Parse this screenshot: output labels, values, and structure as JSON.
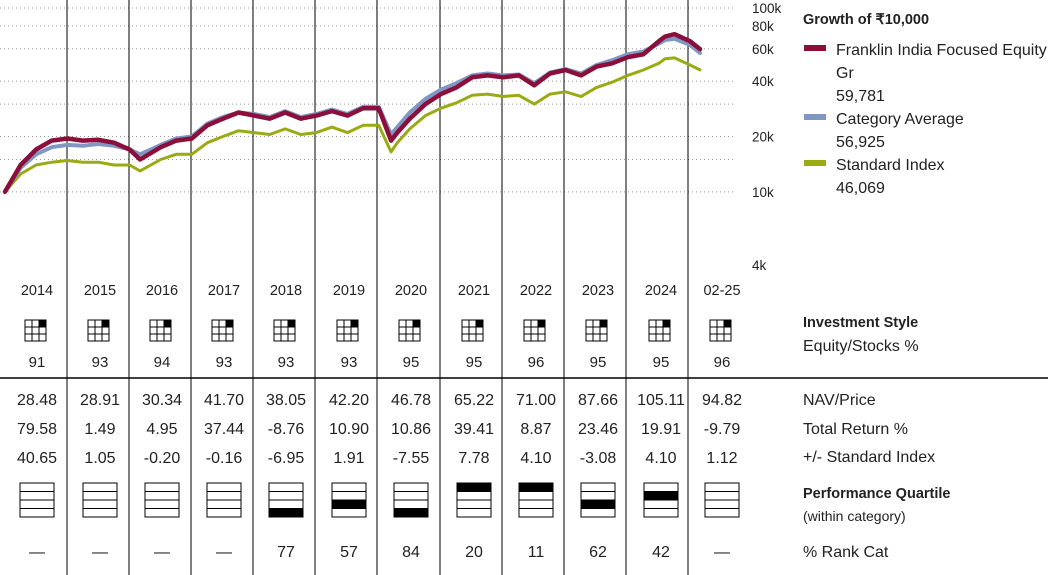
{
  "colors": {
    "fund": "#8b0f3a",
    "category": "#7f97c2",
    "index": "#9aaa12",
    "grid": "#000000",
    "dotted": "#9a9a9a"
  },
  "header": {
    "growth_title": "Growth of ₹10,000"
  },
  "legend": [
    {
      "name_line1": "Franklin India Focused Equity",
      "name_line2": "Gr",
      "value": "59,781",
      "color_key": "fund"
    },
    {
      "name_line1": "Category Average",
      "name_line2": "",
      "value": "56,925",
      "color_key": "category"
    },
    {
      "name_line1": "Standard Index",
      "name_line2": "",
      "value": "46,069",
      "color_key": "index"
    }
  ],
  "years": [
    "2014",
    "2015",
    "2016",
    "2017",
    "2018",
    "2019",
    "2020",
    "2021",
    "2022",
    "2023",
    "2024",
    "02-25"
  ],
  "style": {
    "label": "Investment Style",
    "sublabel": "Equity/Stocks %",
    "box_cell": [
      2,
      2,
      2,
      2,
      2,
      2,
      2,
      2,
      2,
      2,
      2,
      2
    ],
    "equity_pct": [
      "91",
      "93",
      "94",
      "93",
      "93",
      "93",
      "95",
      "95",
      "96",
      "95",
      "95",
      "96"
    ]
  },
  "table": {
    "rows": [
      {
        "label": "NAV/Price",
        "values": [
          "28.48",
          "28.91",
          "30.34",
          "41.70",
          "38.05",
          "42.20",
          "46.78",
          "65.22",
          "71.00",
          "87.66",
          "105.11",
          "94.82"
        ]
      },
      {
        "label": "Total Return %",
        "values": [
          "79.58",
          "1.49",
          "4.95",
          "37.44",
          "-8.76",
          "10.90",
          "10.86",
          "39.41",
          "8.87",
          "23.46",
          "19.91",
          "-9.79"
        ]
      },
      {
        "label": "+/- Standard Index",
        "values": [
          "40.65",
          "1.05",
          "-0.20",
          "-0.16",
          "-6.95",
          "1.91",
          "-7.55",
          "7.78",
          "4.10",
          "-3.08",
          "4.10",
          "1.12"
        ]
      }
    ]
  },
  "quartile": {
    "label": "Performance Quartile",
    "sublabel": "(within category)",
    "values": [
      null,
      null,
      null,
      null,
      4,
      3,
      4,
      1,
      1,
      3,
      2,
      null
    ]
  },
  "rank": {
    "label": "% Rank Cat",
    "values": [
      "—",
      "—",
      "—",
      "—",
      "77",
      "57",
      "84",
      "20",
      "11",
      "62",
      "42",
      "—"
    ]
  },
  "chart_data": {
    "type": "line",
    "title": "Growth of ₹10,000",
    "yscale": "log",
    "ylim": [
      4000,
      100000
    ],
    "yticks": [
      "4k",
      "10k",
      "20k",
      "40k",
      "60k",
      "80k",
      "100k"
    ],
    "ytick_values": [
      4000,
      10000,
      20000,
      40000,
      60000,
      80000,
      100000
    ],
    "x_unit": "year",
    "xlim": [
      2014.0,
      2025.16
    ],
    "grid": true,
    "series": [
      {
        "name": "Franklin India Focused Equity Gr",
        "color_key": "fund",
        "final": 59781,
        "x": [
          2014.0,
          2014.25,
          2014.5,
          2014.75,
          2015.0,
          2015.25,
          2015.5,
          2015.75,
          2016.0,
          2016.17,
          2016.5,
          2016.75,
          2017.0,
          2017.25,
          2017.5,
          2017.75,
          2018.0,
          2018.25,
          2018.5,
          2018.75,
          2019.0,
          2019.25,
          2019.5,
          2019.75,
          2020.0,
          2020.2,
          2020.3,
          2020.5,
          2020.75,
          2021.0,
          2021.25,
          2021.5,
          2021.75,
          2022.0,
          2022.25,
          2022.5,
          2022.75,
          2023.0,
          2023.25,
          2023.5,
          2023.75,
          2024.0,
          2024.25,
          2024.5,
          2024.6,
          2024.75,
          2025.0,
          2025.16
        ],
        "y": [
          10000,
          14000,
          17000,
          19000,
          19500,
          19000,
          19200,
          18500,
          17000,
          15000,
          17500,
          19000,
          19500,
          23000,
          25000,
          27000,
          26000,
          25000,
          27000,
          25000,
          26000,
          27500,
          26000,
          28500,
          28500,
          19000,
          21000,
          25000,
          30000,
          34000,
          37000,
          42000,
          43000,
          42000,
          43000,
          38000,
          44000,
          46000,
          43000,
          48000,
          50000,
          54000,
          56000,
          66000,
          70000,
          72000,
          66000,
          59781
        ]
      },
      {
        "name": "Category Average",
        "color_key": "category",
        "final": 56925,
        "x": [
          2014.0,
          2014.25,
          2014.5,
          2014.75,
          2015.0,
          2015.25,
          2015.5,
          2015.75,
          2016.0,
          2016.17,
          2016.5,
          2016.75,
          2017.0,
          2017.25,
          2017.5,
          2017.75,
          2018.0,
          2018.25,
          2018.5,
          2018.75,
          2019.0,
          2019.25,
          2019.5,
          2019.75,
          2020.0,
          2020.2,
          2020.3,
          2020.5,
          2020.75,
          2021.0,
          2021.25,
          2021.5,
          2021.75,
          2022.0,
          2022.25,
          2022.5,
          2022.75,
          2023.0,
          2023.25,
          2023.5,
          2023.75,
          2024.0,
          2024.25,
          2024.5,
          2024.6,
          2024.75,
          2025.0,
          2025.16
        ],
        "y": [
          10000,
          13500,
          16000,
          17500,
          18000,
          17800,
          18200,
          17800,
          17000,
          16000,
          18000,
          19500,
          20000,
          23500,
          25500,
          27000,
          26500,
          25500,
          27500,
          25500,
          26500,
          28000,
          26500,
          29000,
          29000,
          20500,
          22500,
          27000,
          32000,
          36000,
          39000,
          43000,
          44000,
          43000,
          43500,
          39000,
          44500,
          46500,
          44000,
          49000,
          52000,
          56000,
          58000,
          64000,
          67000,
          68000,
          63000,
          56925
        ]
      },
      {
        "name": "Standard Index",
        "color_key": "index",
        "final": 46069,
        "x": [
          2014.0,
          2014.25,
          2014.5,
          2014.75,
          2015.0,
          2015.25,
          2015.5,
          2015.75,
          2016.0,
          2016.17,
          2016.5,
          2016.75,
          2017.0,
          2017.25,
          2017.5,
          2017.75,
          2018.0,
          2018.25,
          2018.5,
          2018.75,
          2019.0,
          2019.25,
          2019.5,
          2019.75,
          2020.0,
          2020.2,
          2020.3,
          2020.5,
          2020.75,
          2021.0,
          2021.25,
          2021.5,
          2021.75,
          2022.0,
          2022.25,
          2022.5,
          2022.75,
          2023.0,
          2023.25,
          2023.5,
          2023.75,
          2024.0,
          2024.25,
          2024.5,
          2024.6,
          2024.75,
          2025.0,
          2025.16
        ],
        "y": [
          10000,
          12500,
          14000,
          14500,
          14800,
          14500,
          14500,
          14000,
          14000,
          13000,
          15000,
          16000,
          16000,
          18500,
          20000,
          21500,
          21000,
          20500,
          22000,
          20500,
          21000,
          22500,
          21000,
          23000,
          23000,
          16500,
          18500,
          22000,
          26000,
          28500,
          30500,
          33500,
          34000,
          33000,
          33500,
          30000,
          34000,
          35000,
          33000,
          37000,
          39500,
          43000,
          46000,
          50000,
          53000,
          53500,
          49000,
          46069
        ]
      }
    ]
  }
}
